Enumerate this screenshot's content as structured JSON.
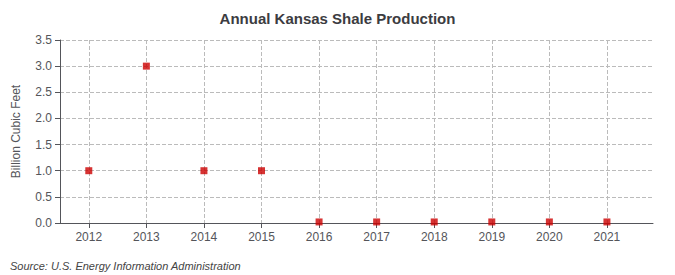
{
  "chart_data": {
    "type": "scatter",
    "title": "Annual Kansas Shale Production",
    "ylabel": "Billion Cubic Feet",
    "annotations": [
      "Source: U.S. Energy Information Administration"
    ],
    "x": [
      2012,
      2013,
      2014,
      2015,
      2016,
      2017,
      2018,
      2019,
      2020,
      2021
    ],
    "values": [
      1.0,
      3.0,
      1.0,
      1.0,
      0.02,
      0.02,
      0.02,
      0.02,
      0.02,
      0.02
    ],
    "color": "#cc0000",
    "marker": "square",
    "xlim": [
      2011.5,
      2021.8
    ],
    "xticks": [
      2012,
      2013,
      2014,
      2015,
      2016,
      2017,
      2018,
      2019,
      2020,
      2021
    ],
    "ylim": [
      0.0,
      3.5
    ],
    "yticks": [
      {
        "value": 0.0,
        "label": "0.0"
      },
      0.5,
      {
        "value": 1.0,
        "label": "1.0"
      },
      1.5,
      {
        "value": 2.0,
        "label": "2.0"
      },
      2.5,
      {
        "value": 3.0,
        "label": "3.0"
      },
      3.5
    ],
    "grid": true
  }
}
